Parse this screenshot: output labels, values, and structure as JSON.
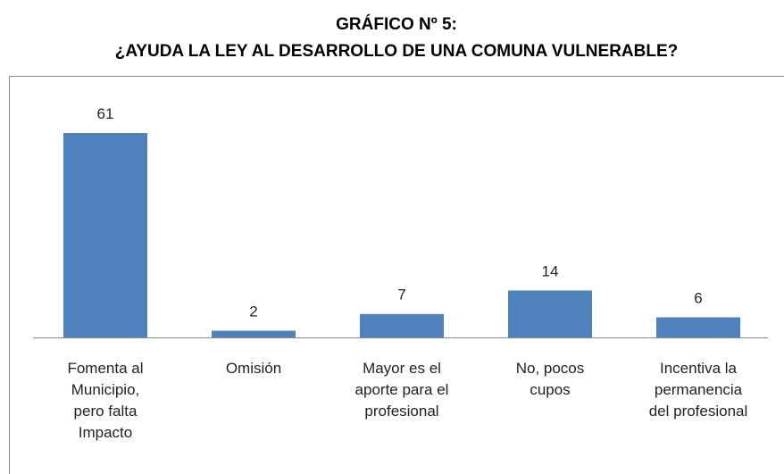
{
  "chart_data": {
    "type": "bar",
    "title": "GRÁFICO Nº 5:",
    "subtitle": "¿AYUDA LA LEY AL DESARROLLO DE UNA COMUNA VULNERABLE?",
    "categories": [
      "Fomenta al Municipio, pero falta Impacto",
      "Omisión",
      "Mayor es el aporte para el profesional",
      "No, pocos cupos",
      "Incentiva la permanencia del profesional"
    ],
    "values": [
      61,
      2,
      7,
      14,
      6
    ],
    "color": "#4f81bd"
  }
}
